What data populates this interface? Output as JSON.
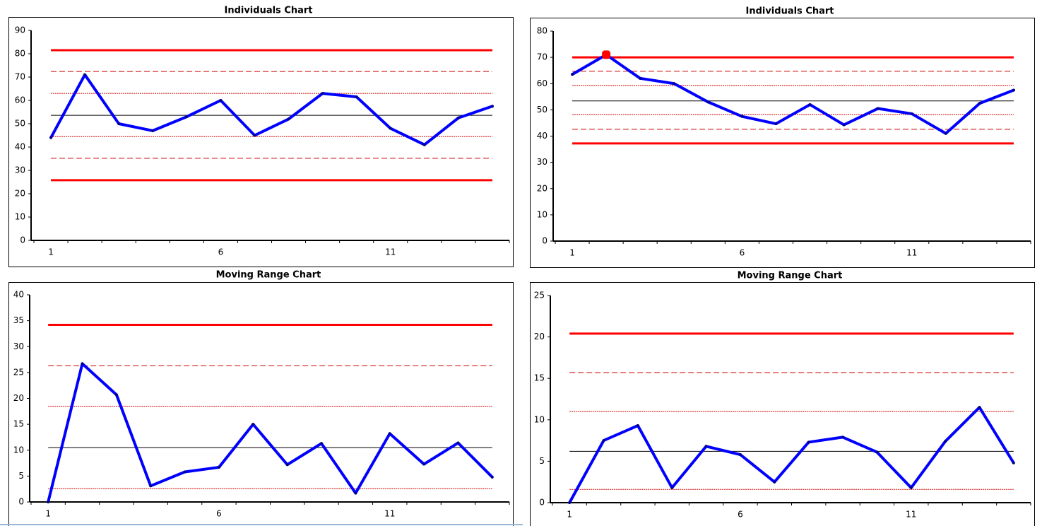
{
  "chart_data": [
    {
      "type": "line",
      "title": "Individuals Chart",
      "categories": [
        "1",
        null,
        null,
        null,
        null,
        "6",
        null,
        null,
        null,
        null,
        "11",
        null,
        null,
        null
      ],
      "values": [
        44,
        71,
        50,
        47,
        53,
        60,
        45,
        52,
        63,
        61.5,
        48,
        41,
        52.5,
        57.5
      ],
      "color": "#0000ff",
      "ylim": [
        0,
        90
      ],
      "yticks": [
        0,
        10,
        20,
        30,
        40,
        50,
        60,
        70,
        80,
        90
      ],
      "reference_lines": [
        {
          "value": 81.5,
          "style": "solid",
          "color": "#ff0000"
        },
        {
          "value": 72.4,
          "style": "dashed",
          "color": "#cc0000"
        },
        {
          "value": 63,
          "style": "dotted",
          "color": "#cc0000"
        },
        {
          "value": 53.6,
          "style": "solid-thin",
          "color": "#000000"
        },
        {
          "value": 44.5,
          "style": "dotted",
          "color": "#cc0000"
        },
        {
          "value": 35.2,
          "style": "dashed",
          "color": "#cc0000"
        },
        {
          "value": 25.8,
          "style": "solid",
          "color": "#ff0000"
        }
      ]
    },
    {
      "type": "line",
      "title": "Individuals Chart",
      "categories": [
        "1",
        null,
        null,
        null,
        null,
        "6",
        null,
        null,
        null,
        null,
        "11",
        null,
        null,
        null
      ],
      "values": [
        63.5,
        71,
        62,
        60,
        53,
        47.5,
        44.7,
        52,
        44.3,
        50.5,
        48.5,
        41,
        52.5,
        57.5
      ],
      "color": "#0000ff",
      "ylim": [
        0,
        80
      ],
      "yticks": [
        0,
        10,
        20,
        30,
        40,
        50,
        60,
        70,
        80
      ],
      "highlight_points": [
        1
      ],
      "highlight_color": "#ff0000",
      "reference_lines": [
        {
          "value": 70,
          "style": "solid",
          "color": "#ff0000"
        },
        {
          "value": 64.7,
          "style": "dashed",
          "color": "#cc0000"
        },
        {
          "value": 59.3,
          "style": "dotted",
          "color": "#cc0000"
        },
        {
          "value": 53.4,
          "style": "solid-thin",
          "color": "#000000"
        },
        {
          "value": 48.2,
          "style": "dotted",
          "color": "#cc0000"
        },
        {
          "value": 42.6,
          "style": "dashed",
          "color": "#cc0000"
        },
        {
          "value": 37.2,
          "style": "solid",
          "color": "#ff0000"
        }
      ]
    },
    {
      "type": "line",
      "title": "Moving Range Chart",
      "categories": [
        "1",
        null,
        null,
        null,
        null,
        "6",
        null,
        null,
        null,
        null,
        "11",
        null,
        null,
        null
      ],
      "values": [
        0,
        26.7,
        20.7,
        3.1,
        5.8,
        6.7,
        15,
        7.2,
        11.3,
        1.7,
        13.2,
        7.3,
        11.4,
        4.8
      ],
      "color": "#0000ff",
      "ylim": [
        0,
        40
      ],
      "yticks": [
        0,
        5,
        10,
        15,
        20,
        25,
        30,
        35,
        40
      ],
      "reference_lines": [
        {
          "value": 34.2,
          "style": "solid",
          "color": "#ff0000"
        },
        {
          "value": 26.3,
          "style": "dashed",
          "color": "#cc0000"
        },
        {
          "value": 18.5,
          "style": "dotted",
          "color": "#cc0000"
        },
        {
          "value": 10.5,
          "style": "solid-thin",
          "color": "#000000"
        },
        {
          "value": 2.6,
          "style": "dotted",
          "color": "#cc0000"
        }
      ]
    },
    {
      "type": "line",
      "title": "Moving Range Chart",
      "categories": [
        "1",
        null,
        null,
        null,
        null,
        "6",
        null,
        null,
        null,
        null,
        "11",
        null,
        null,
        null
      ],
      "values": [
        0,
        7.5,
        9.3,
        1.8,
        6.8,
        5.8,
        2.5,
        7.3,
        7.9,
        6.1,
        1.8,
        7.4,
        11.5,
        4.8
      ],
      "color": "#0000ff",
      "ylim": [
        0,
        25
      ],
      "yticks": [
        0,
        5,
        10,
        15,
        20,
        25
      ],
      "reference_lines": [
        {
          "value": 20.4,
          "style": "solid",
          "color": "#ff0000"
        },
        {
          "value": 15.7,
          "style": "dashed",
          "color": "#cc0000"
        },
        {
          "value": 11,
          "style": "dotted",
          "color": "#cc0000"
        },
        {
          "value": 6.2,
          "style": "solid-thin",
          "color": "#000000"
        },
        {
          "value": 1.6,
          "style": "dotted",
          "color": "#cc0000"
        }
      ]
    }
  ]
}
